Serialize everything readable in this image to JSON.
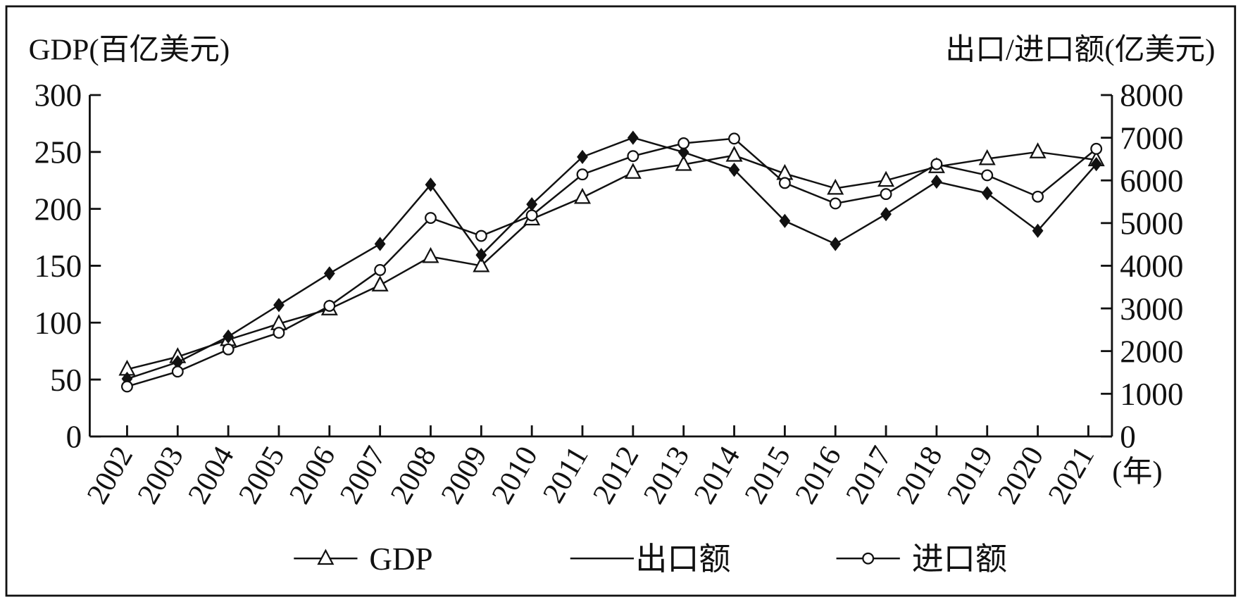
{
  "chart_data": {
    "type": "line",
    "title": "",
    "ylabel_left": "GDP(百亿美元)",
    "ylabel_right": "出口/进口额(亿美元)",
    "xlabel": "(年)",
    "ylim_left": [
      0,
      300
    ],
    "ylim_right": [
      0,
      8000
    ],
    "yticks_left": [
      "0",
      "50",
      "100",
      "150",
      "200",
      "250",
      "300"
    ],
    "yticks_right": [
      "0",
      "1000",
      "2000",
      "3000",
      "4000",
      "5000",
      "6000",
      "7000",
      "8000"
    ],
    "grid": false,
    "legend_position": "bottom",
    "categories": [
      "2002",
      "2003",
      "2004",
      "2005",
      "2006",
      "2007",
      "2008",
      "2009",
      "2010",
      "2011",
      "2012",
      "2013",
      "2014",
      "2015",
      "2016",
      "2017",
      "2018",
      "2019",
      "2020",
      "2021"
    ],
    "series": [
      {
        "name": "GDP",
        "axis": "left",
        "marker": "triangle",
        "values": [
          59,
          70,
          85,
          99,
          112,
          133,
          158,
          150,
          191,
          210,
          232,
          239,
          247,
          231,
          218,
          225,
          237,
          244,
          250,
          243
        ]
      },
      {
        "name": "出口额",
        "axis": "right",
        "marker": "diamond",
        "values": [
          1350,
          1740,
          2340,
          3080,
          3820,
          4510,
          5900,
          4250,
          5440,
          6550,
          7000,
          6660,
          6250,
          5050,
          4510,
          5210,
          5970,
          5700,
          4820,
          6380
        ]
      },
      {
        "name": "进口额",
        "axis": "right",
        "marker": "circle",
        "values": [
          1170,
          1520,
          2040,
          2430,
          3060,
          3900,
          5120,
          4700,
          5180,
          6140,
          6570,
          6870,
          6980,
          5940,
          5460,
          5680,
          6380,
          6120,
          5620,
          6740
        ]
      }
    ]
  }
}
